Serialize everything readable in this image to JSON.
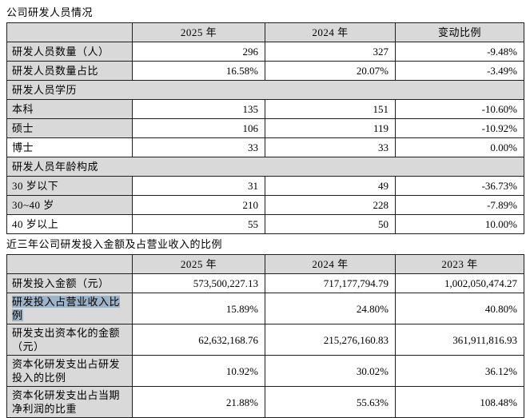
{
  "colors": {
    "section_header_bg": "#d9d9d9",
    "selection_highlight": "#9db3c7",
    "table_border": "#1f1f1f"
  },
  "table1": {
    "title": "公司研发人员情况",
    "headers": [
      "",
      "2025 年",
      "2024 年",
      "变动比例"
    ],
    "rows": [
      {
        "label": "研发人员数量（人）",
        "v1": "296",
        "v2": "327",
        "v3": "-9.48%"
      },
      {
        "label": "研发人员数量占比",
        "v1": "16.58%",
        "v2": "20.07%",
        "v3": "-3.49%"
      },
      {
        "label": "研发人员学历",
        "section": true
      },
      {
        "label": "本科",
        "v1": "135",
        "v2": "151",
        "v3": "-10.60%"
      },
      {
        "label": "硕士",
        "v1": "106",
        "v2": "119",
        "v3": "-10.92%"
      },
      {
        "label": "博士",
        "v1": "33",
        "v2": "33",
        "v3": "0.00%",
        "label_bg": "white"
      },
      {
        "label": "研发人员年龄构成",
        "section": true
      },
      {
        "label": "30 岁以下",
        "v1": "31",
        "v2": "49",
        "v3": "-36.73%"
      },
      {
        "label": "30~40 岁",
        "v1": "210",
        "v2": "228",
        "v3": "-7.89%"
      },
      {
        "label": "40 岁以上",
        "v1": "55",
        "v2": "50",
        "v3": "10.00%",
        "label_bg": "white"
      }
    ]
  },
  "table2": {
    "title": "近三年公司研发投入金额及占营业收入的比例",
    "headers": [
      "",
      "2025 年",
      "2024 年",
      "2023 年"
    ],
    "rows": [
      {
        "label": "研发投入金额（元）",
        "v1": "573,500,227.13",
        "v2": "717,177,794.79",
        "v3": "1,002,050,474.27"
      },
      {
        "label": "研发投入占营业收入比例",
        "v1": "15.89%",
        "v2": "24.80%",
        "v3": "40.80%",
        "highlight": true
      },
      {
        "label": "研发支出资本化的金额（元）",
        "v1": "62,632,168.76",
        "v2": "215,276,160.83",
        "v3": "361,911,816.93"
      },
      {
        "label": "资本化研发支出占研发投入的比例",
        "v1": "10.92%",
        "v2": "30.02%",
        "v3": "36.12%"
      },
      {
        "label": "资本化研发支出占当期净利润的比重",
        "v1": "21.88%",
        "v2": "55.63%",
        "v3": "108.48%"
      }
    ]
  }
}
